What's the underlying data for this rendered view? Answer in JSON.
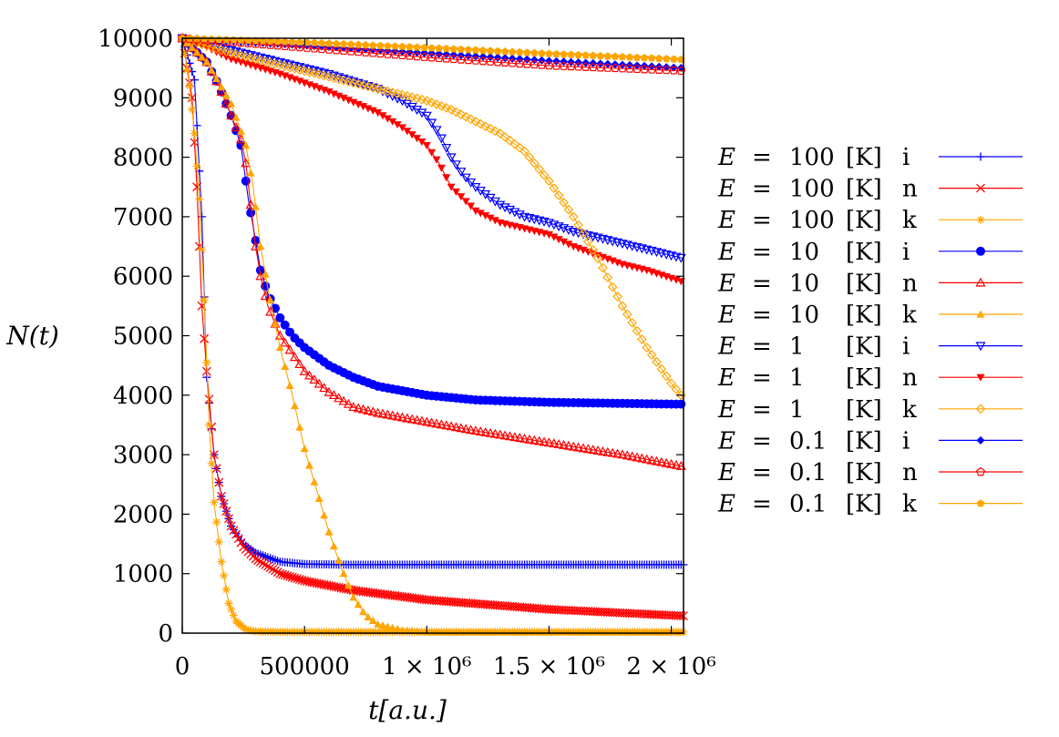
{
  "chart_data": {
    "type": "line",
    "title": "",
    "xlabel": "t[a.u.]",
    "ylabel": "N(t)",
    "xlim": [
      0,
      2050000
    ],
    "ylim": [
      0,
      10000
    ],
    "grid": false,
    "legend_position": "right",
    "x_ticks": [
      {
        "value": 0,
        "label": "0"
      },
      {
        "value": 500000,
        "label": "500000"
      },
      {
        "value": 1000000,
        "label": "1 × 10⁶"
      },
      {
        "value": 1500000,
        "label": "1.5 × 10⁶"
      },
      {
        "value": 2000000,
        "label": "2 × 10⁶"
      }
    ],
    "y_ticks": [
      {
        "value": 0,
        "label": "0"
      },
      {
        "value": 1000,
        "label": "1000"
      },
      {
        "value": 2000,
        "label": "2000"
      },
      {
        "value": 3000,
        "label": "3000"
      },
      {
        "value": 4000,
        "label": "4000"
      },
      {
        "value": 5000,
        "label": "5000"
      },
      {
        "value": 6000,
        "label": "6000"
      },
      {
        "value": 7000,
        "label": "7000"
      },
      {
        "value": 8000,
        "label": "8000"
      },
      {
        "value": 9000,
        "label": "9000"
      },
      {
        "value": 10000,
        "label": "10000"
      }
    ],
    "series": [
      {
        "name": "E = 100 [K] i",
        "color": "#0000ff",
        "marker": "plus",
        "every": 10000,
        "x": [
          0,
          50000,
          80000,
          100000,
          130000,
          160000,
          200000,
          250000,
          300000,
          400000,
          500000,
          700000,
          1000000,
          1500000,
          2000000,
          2050000
        ],
        "y": [
          10000,
          9300,
          7000,
          4300,
          3000,
          2300,
          1800,
          1500,
          1350,
          1200,
          1160,
          1150,
          1150,
          1150,
          1150,
          1150
        ]
      },
      {
        "name": "E = 100 [K] n",
        "color": "#ff0000",
        "marker": "x",
        "every": 10000,
        "x": [
          0,
          40000,
          60000,
          80000,
          100000,
          130000,
          160000,
          200000,
          250000,
          300000,
          400000,
          500000,
          700000,
          1000000,
          1500000,
          2000000,
          2050000
        ],
        "y": [
          10000,
          9000,
          7500,
          5500,
          4400,
          3000,
          2300,
          1800,
          1450,
          1250,
          1000,
          880,
          720,
          560,
          400,
          300,
          290
        ],
        "note": "lines"
      },
      {
        "name": "E = 100 [K] k",
        "color": "#ffa500",
        "marker": "asterisk",
        "every": 10000,
        "x": [
          0,
          30000,
          50000,
          70000,
          90000,
          110000,
          130000,
          160000,
          190000,
          220000,
          260000,
          300000,
          400000,
          600000,
          1000000,
          2050000
        ],
        "y": [
          10000,
          9200,
          8400,
          7300,
          5600,
          3500,
          2200,
          1200,
          500,
          200,
          60,
          30,
          20,
          20,
          20,
          20
        ]
      },
      {
        "name": "E = 10 [K] i",
        "color": "#0000ff",
        "marker": "dot",
        "every": 20000,
        "x": [
          0,
          100000,
          150000,
          200000,
          240000,
          270000,
          300000,
          320000,
          350000,
          400000,
          450000,
          500000,
          600000,
          700000,
          800000,
          1000000,
          1200000,
          1500000,
          2000000,
          2050000
        ],
        "y": [
          10000,
          9600,
          9200,
          8700,
          8200,
          7300,
          6600,
          6100,
          5700,
          5300,
          5000,
          4800,
          4500,
          4300,
          4150,
          4000,
          3920,
          3880,
          3850,
          3850
        ]
      },
      {
        "name": "E = 10 [K] n",
        "color": "#ff0000",
        "marker": "triangle-open",
        "every": 20000,
        "x": [
          0,
          100000,
          150000,
          200000,
          240000,
          260000,
          280000,
          300000,
          320000,
          350000,
          400000,
          450000,
          500000,
          600000,
          700000,
          800000,
          1000000,
          1200000,
          1500000,
          1800000,
          2050000
        ],
        "y": [
          10000,
          9600,
          9200,
          8700,
          8300,
          7900,
          7200,
          6500,
          6000,
          5500,
          5000,
          4700,
          4400,
          4050,
          3800,
          3700,
          3550,
          3400,
          3200,
          3000,
          2800
        ]
      },
      {
        "name": "E = 10 [K] k",
        "color": "#ffa500",
        "marker": "triangle-filled",
        "every": 20000,
        "x": [
          0,
          100000,
          200000,
          260000,
          290000,
          320000,
          350000,
          400000,
          450000,
          500000,
          550000,
          600000,
          650000,
          700000,
          750000,
          800000,
          900000,
          1000000,
          1200000,
          2050000
        ],
        "y": [
          10000,
          9600,
          8900,
          8200,
          7500,
          6500,
          5800,
          4800,
          4000,
          3100,
          2400,
          1700,
          1100,
          600,
          300,
          150,
          50,
          20,
          20,
          20
        ]
      },
      {
        "name": "E = 1 [K] i",
        "color": "#0000ff",
        "marker": "triangle-down-open",
        "every": 20000,
        "x": [
          0,
          200000,
          400000,
          600000,
          800000,
          900000,
          1000000,
          1050000,
          1100000,
          1150000,
          1200000,
          1300000,
          1400000,
          1500000,
          1600000,
          1700000,
          1800000,
          1900000,
          2050000
        ],
        "y": [
          10000,
          9800,
          9600,
          9400,
          9150,
          8950,
          8700,
          8400,
          8000,
          7700,
          7500,
          7200,
          7000,
          6900,
          6750,
          6650,
          6550,
          6450,
          6300
        ]
      },
      {
        "name": "E = 1 [K] n",
        "color": "#ff0000",
        "marker": "triangle-down-filled",
        "every": 20000,
        "x": [
          0,
          100000,
          200000,
          400000,
          600000,
          800000,
          900000,
          1000000,
          1050000,
          1100000,
          1150000,
          1200000,
          1300000,
          1400000,
          1500000,
          1600000,
          1700000,
          1800000,
          1900000,
          2050000
        ],
        "y": [
          10000,
          9850,
          9650,
          9400,
          9100,
          8750,
          8500,
          8200,
          7900,
          7500,
          7300,
          7100,
          6900,
          6800,
          6700,
          6500,
          6350,
          6200,
          6100,
          5900
        ]
      },
      {
        "name": "E = 1 [K] k",
        "color": "#ffa500",
        "marker": "diamond-open",
        "every": 20000,
        "x": [
          0,
          200000,
          400000,
          600000,
          800000,
          1000000,
          1100000,
          1200000,
          1300000,
          1400000,
          1500000,
          1600000,
          1700000,
          1800000,
          1900000,
          2000000,
          2050000
        ],
        "y": [
          10000,
          9750,
          9550,
          9350,
          9150,
          8950,
          8800,
          8600,
          8400,
          8100,
          7600,
          7000,
          6300,
          5500,
          4800,
          4200,
          3950
        ]
      },
      {
        "name": "E = 0.1 [K] i",
        "color": "#0000ff",
        "marker": "diamond-filled",
        "every": 30000,
        "x": [
          0,
          500000,
          1000000,
          1500000,
          2000000,
          2050000
        ],
        "y": [
          10000,
          9880,
          9750,
          9620,
          9510,
          9500
        ]
      },
      {
        "name": "E = 0.1 [K] n",
        "color": "#ff0000",
        "marker": "pentagon-open",
        "every": 30000,
        "x": [
          0,
          500000,
          1000000,
          1500000,
          2000000,
          2050000
        ],
        "y": [
          10000,
          9840,
          9680,
          9540,
          9460,
          9450
        ]
      },
      {
        "name": "E = 0.1 [K] k",
        "color": "#ffa500",
        "marker": "pentagon-filled",
        "every": 30000,
        "x": [
          0,
          500000,
          1000000,
          1500000,
          2000000,
          2050000
        ],
        "y": [
          10000,
          9930,
          9840,
          9740,
          9650,
          9640
        ]
      }
    ],
    "legend": [
      {
        "e": "E",
        "eq": "=",
        "val": "100",
        "unit": "[K]",
        "tag": "i"
      },
      {
        "e": "E",
        "eq": "=",
        "val": "100",
        "unit": "[K]",
        "tag": "n"
      },
      {
        "e": "E",
        "eq": "=",
        "val": "100",
        "unit": "[K]",
        "tag": "k"
      },
      {
        "e": "E",
        "eq": "=",
        "val": "10",
        "unit": "[K]",
        "tag": "i"
      },
      {
        "e": "E",
        "eq": "=",
        "val": "10",
        "unit": "[K]",
        "tag": "n"
      },
      {
        "e": "E",
        "eq": "=",
        "val": "10",
        "unit": "[K]",
        "tag": "k"
      },
      {
        "e": "E",
        "eq": "=",
        "val": "1",
        "unit": "[K]",
        "tag": "i"
      },
      {
        "e": "E",
        "eq": "=",
        "val": "1",
        "unit": "[K]",
        "tag": "n"
      },
      {
        "e": "E",
        "eq": "=",
        "val": "1",
        "unit": "[K]",
        "tag": "k"
      },
      {
        "e": "E",
        "eq": "=",
        "val": "0.1",
        "unit": "[K]",
        "tag": "i"
      },
      {
        "e": "E",
        "eq": "=",
        "val": "0.1",
        "unit": "[K]",
        "tag": "n"
      },
      {
        "e": "E",
        "eq": "=",
        "val": "0.1",
        "unit": "[K]",
        "tag": "k"
      }
    ]
  }
}
